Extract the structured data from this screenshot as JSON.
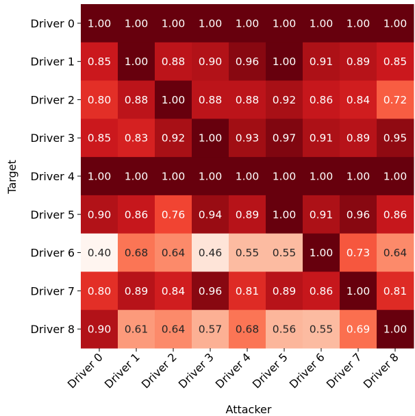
{
  "chart_data": {
    "type": "heatmap",
    "title": "",
    "xlabel": "Attacker",
    "ylabel": "Target",
    "colormap": "Reds",
    "vmin": 0.4,
    "vmax": 1.0,
    "legend": "none",
    "x_categories": [
      "Driver 0",
      "Driver 1",
      "Driver 2",
      "Driver 3",
      "Driver 4",
      "Driver 5",
      "Driver 6",
      "Driver 7",
      "Driver 8"
    ],
    "y_categories": [
      "Driver 0",
      "Driver 1",
      "Driver 2",
      "Driver 3",
      "Driver 4",
      "Driver 5",
      "Driver 6",
      "Driver 7",
      "Driver 8"
    ],
    "values": [
      [
        1.0,
        1.0,
        1.0,
        1.0,
        1.0,
        1.0,
        1.0,
        1.0,
        1.0
      ],
      [
        0.85,
        1.0,
        0.88,
        0.9,
        0.96,
        1.0,
        0.91,
        0.89,
        0.85
      ],
      [
        0.8,
        0.88,
        1.0,
        0.88,
        0.88,
        0.92,
        0.86,
        0.84,
        0.72
      ],
      [
        0.85,
        0.83,
        0.92,
        1.0,
        0.93,
        0.97,
        0.91,
        0.89,
        0.95
      ],
      [
        1.0,
        1.0,
        1.0,
        1.0,
        1.0,
        1.0,
        1.0,
        1.0,
        1.0
      ],
      [
        0.9,
        0.86,
        0.76,
        0.94,
        0.89,
        1.0,
        0.91,
        0.96,
        0.86
      ],
      [
        0.4,
        0.68,
        0.64,
        0.46,
        0.55,
        0.55,
        1.0,
        0.73,
        0.64
      ],
      [
        0.8,
        0.89,
        0.84,
        0.96,
        0.81,
        0.89,
        0.86,
        1.0,
        0.81
      ],
      [
        0.9,
        0.61,
        0.64,
        0.57,
        0.68,
        0.56,
        0.55,
        0.69,
        1.0
      ]
    ]
  }
}
